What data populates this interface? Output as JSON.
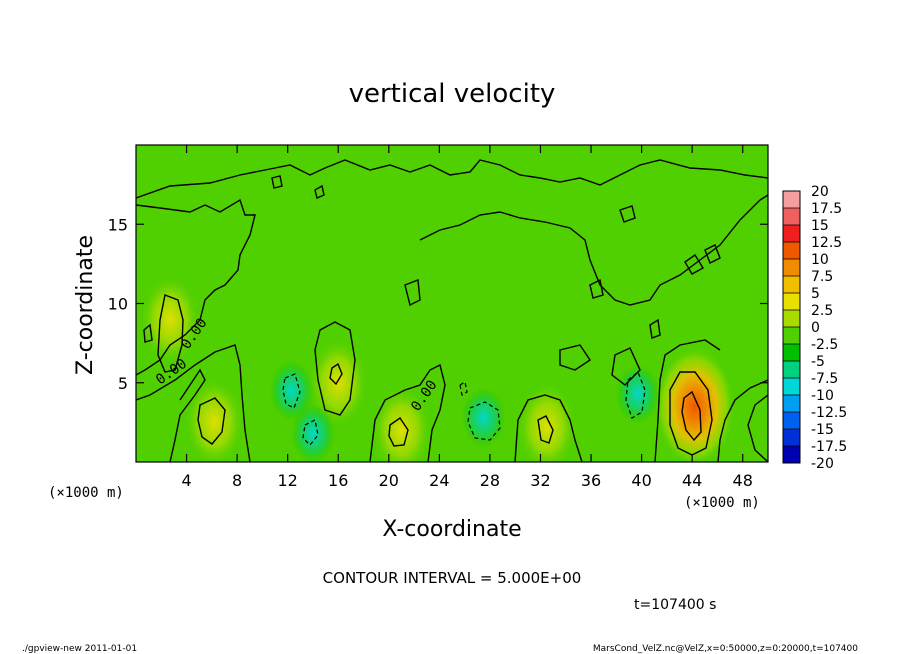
{
  "chart_data": {
    "type": "heatmap",
    "title": "vertical velocity",
    "xlabel": "X-coordinate",
    "ylabel": "Z-coordinate",
    "x_unit_left": "(×1000 m)",
    "x_unit_right": "(×1000 m)",
    "xlim": [
      0,
      50
    ],
    "ylim": [
      0,
      20
    ],
    "x_ticks": [
      "4",
      "8",
      "12",
      "16",
      "20",
      "24",
      "28",
      "32",
      "36",
      "40",
      "44",
      "48"
    ],
    "y_ticks": [
      "5",
      "10",
      "15"
    ],
    "colorbar": {
      "labels": [
        "20",
        "17.5",
        "15",
        "12.5",
        "10",
        "7.5",
        "5",
        "2.5",
        "0",
        "-2.5",
        "-5",
        "-7.5",
        "-10",
        "-12.5",
        "-15",
        "-17.5",
        "-20"
      ],
      "colors": [
        "#f5a0a0",
        "#f06060",
        "#f02020",
        "#f05800",
        "#f08c00",
        "#f0c000",
        "#e8e000",
        "#a8dc00",
        "#50d000",
        "#00c000",
        "#00d080",
        "#00d8d8",
        "#00a0f0",
        "#0060f0",
        "#0030d8",
        "#0000b0",
        "#5000b0"
      ]
    },
    "contour_interval_text": "CONTOUR INTERVAL = 5.000E+00",
    "contour_labels": [
      "0.00",
      "0.00",
      "0.00"
    ],
    "time_text": "t=107400 s",
    "footer_left": "./gpview-new   2011-01-01",
    "footer_right": "MarsCond_VelZ.nc@VelZ,x=0:50000,z=0:20000,t=107400",
    "features": [
      {
        "x": 2.7,
        "z": 9.0,
        "w": 5.0,
        "type": "updraft"
      },
      {
        "x": 6.2,
        "z": 2.5,
        "w": 4.0,
        "type": "updraft"
      },
      {
        "x": 16.0,
        "z": 5.0,
        "w": 3.0,
        "type": "updraft"
      },
      {
        "x": 21.0,
        "z": 2.0,
        "w": 3.0,
        "type": "updraft"
      },
      {
        "x": 32.5,
        "z": 2.2,
        "w": 3.0,
        "type": "updraft"
      },
      {
        "x": 44.2,
        "z": 3.5,
        "w": 10.0,
        "type": "updraft"
      },
      {
        "x": 12.3,
        "z": 4.5,
        "w": -5.0,
        "type": "downdraft"
      },
      {
        "x": 14.0,
        "z": 1.8,
        "w": -2.5,
        "type": "downdraft"
      },
      {
        "x": 27.5,
        "z": 2.8,
        "w": -5.0,
        "type": "downdraft"
      },
      {
        "x": 39.7,
        "z": 4.3,
        "w": -5.0,
        "type": "downdraft"
      }
    ]
  }
}
